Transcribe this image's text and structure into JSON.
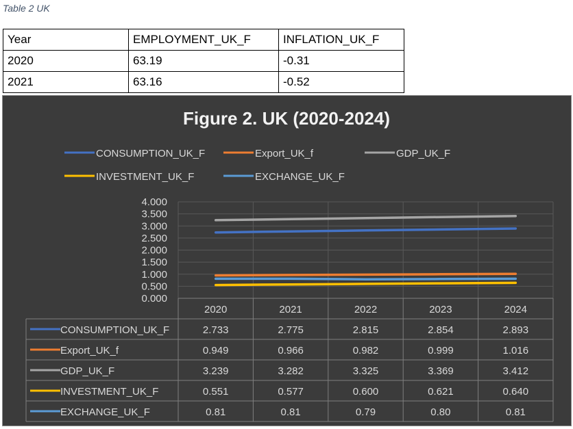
{
  "caption": "Table 2 UK",
  "top_table": {
    "headers": [
      "Year",
      "EMPLOYMENT_UK_F",
      "INFLATION_UK_F"
    ],
    "rows": [
      [
        "2020",
        "63.19",
        "-0.31"
      ],
      [
        "2021",
        "63.16",
        "-0.52"
      ]
    ]
  },
  "chart_data": {
    "type": "line",
    "title": "Figure 2. UK (2020-2024)",
    "categories": [
      "2020",
      "2021",
      "2022",
      "2023",
      "2024"
    ],
    "ylim": [
      0,
      4
    ],
    "y_ticks": [
      "0.000",
      "0.500",
      "1.000",
      "1.500",
      "2.000",
      "2.500",
      "3.000",
      "3.500",
      "4.000"
    ],
    "grid": true,
    "legend_position": "top",
    "data_table": true,
    "series": [
      {
        "name": "CONSUMPTION_UK_F",
        "color": "#4472c4",
        "values": [
          2.733,
          2.775,
          2.815,
          2.854,
          2.893
        ],
        "labels": [
          "2.733",
          "2.775",
          "2.815",
          "2.854",
          "2.893"
        ]
      },
      {
        "name": "Export_UK_f",
        "color": "#ed7d31",
        "values": [
          0.949,
          0.966,
          0.982,
          0.999,
          1.016
        ],
        "labels": [
          "0.949",
          "0.966",
          "0.982",
          "0.999",
          "1.016"
        ]
      },
      {
        "name": "GDP_UK_F",
        "color": "#a5a5a5",
        "values": [
          3.239,
          3.282,
          3.325,
          3.369,
          3.412
        ],
        "labels": [
          "3.239",
          "3.282",
          "3.325",
          "3.369",
          "3.412"
        ]
      },
      {
        "name": "INVESTMENT_UK_F",
        "color": "#ffc000",
        "values": [
          0.551,
          0.577,
          0.6,
          0.621,
          0.64
        ],
        "labels": [
          "0.551",
          "0.577",
          "0.600",
          "0.621",
          "0.640"
        ]
      },
      {
        "name": "EXCHANGE_UK_F",
        "color": "#5b9bd5",
        "values": [
          0.81,
          0.81,
          0.79,
          0.8,
          0.81
        ],
        "labels": [
          "0.81",
          "0.81",
          "0.79",
          "0.80",
          "0.81"
        ]
      }
    ]
  }
}
